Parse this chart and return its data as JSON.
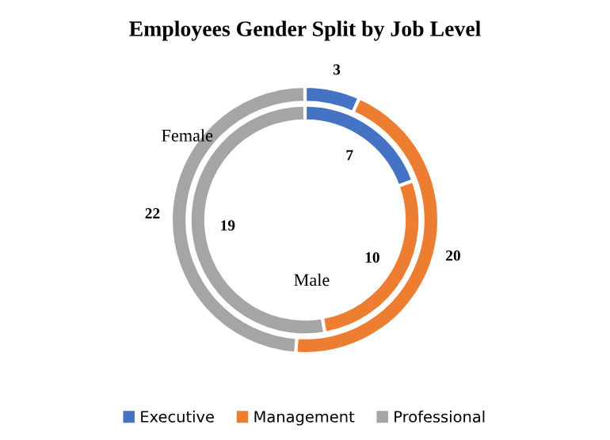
{
  "chart_data": {
    "type": "donut",
    "title": "Employees Gender Split by Job Level",
    "categories": [
      "Executive",
      "Management",
      "Professional"
    ],
    "colors": [
      "#4472c4",
      "#ed7d31",
      "#a5a5a5"
    ],
    "series": [
      {
        "name": "Female",
        "values": [
          3,
          20,
          22
        ]
      },
      {
        "name": "Male",
        "values": [
          7,
          10,
          19
        ]
      }
    ],
    "data_labels": true,
    "legend": "bottom"
  }
}
